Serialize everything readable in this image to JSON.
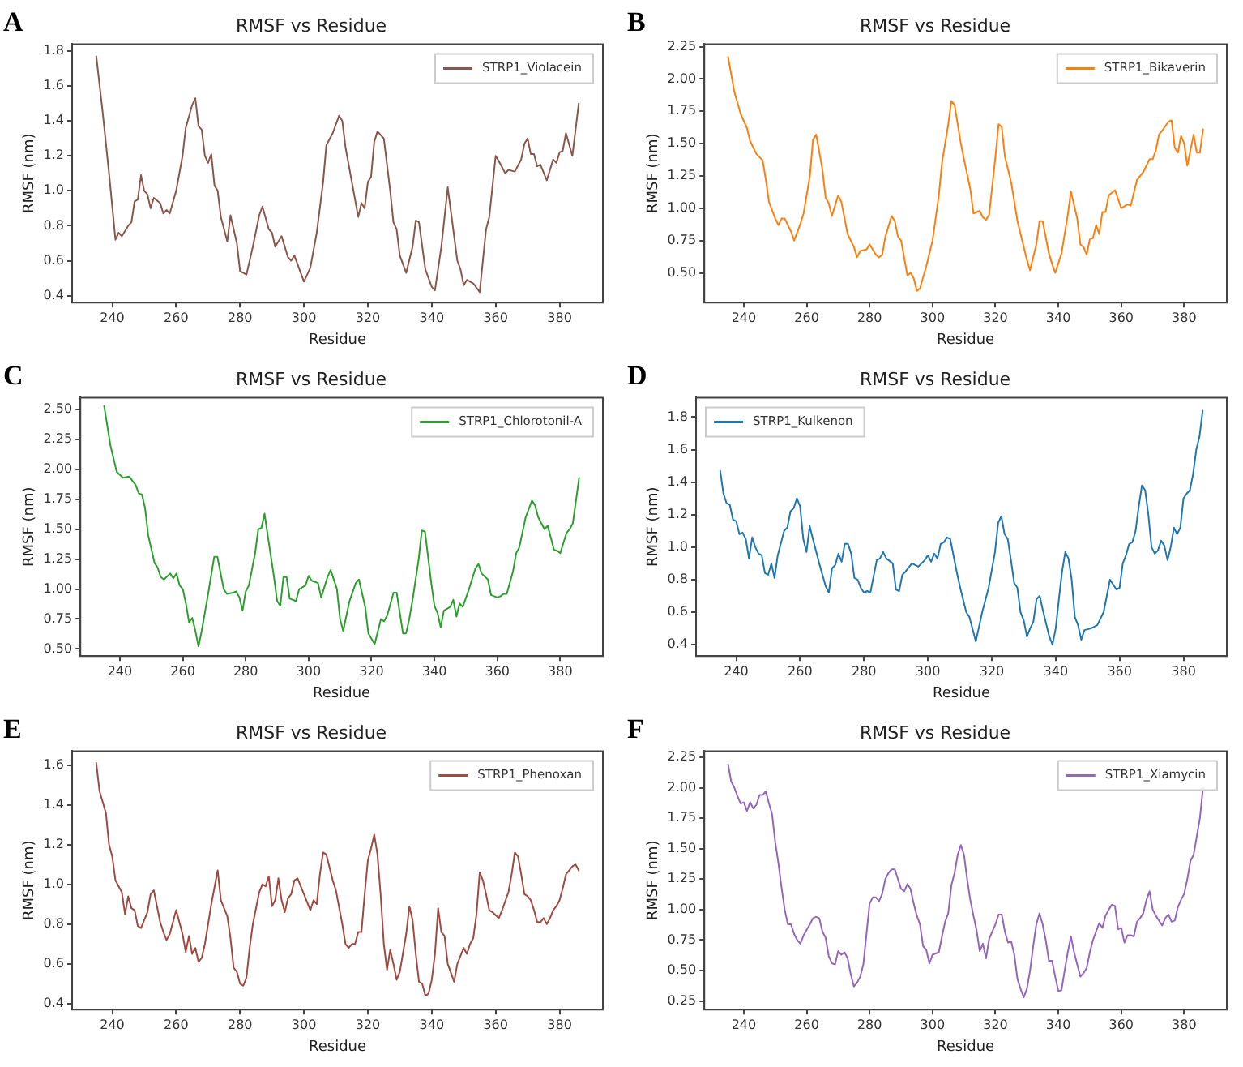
{
  "chart_data": [
    {
      "type": "line",
      "title": "RMSF vs Residue",
      "xlabel": "Residue",
      "ylabel": "RMSF (nm)",
      "annotations": [
        "A"
      ],
      "legend": "top right",
      "grid": false,
      "marker": "none",
      "line_style": "solid",
      "xlim": [
        227.45,
        393.55
      ],
      "xticks": [
        240,
        260,
        280,
        300,
        320,
        340,
        360,
        380
      ],
      "ylim": [
        0.36,
        1.84
      ],
      "yticks": [
        0.4,
        0.6,
        0.8,
        {
          "value": 1,
          "label": "1.0"
        },
        1.2,
        1.4,
        1.6,
        1.8
      ],
      "x": [
        235,
        237,
        239,
        241,
        242,
        243,
        245,
        246,
        247,
        248,
        249,
        250,
        251,
        252,
        253,
        255,
        256,
        257,
        258,
        260,
        262,
        263,
        265,
        266,
        267,
        268,
        269,
        270,
        271,
        272,
        273,
        274,
        276,
        277,
        279,
        280,
        282,
        284,
        286,
        287,
        289,
        290,
        291,
        293,
        295,
        296,
        297,
        300,
        302,
        304,
        306,
        307,
        309,
        311,
        312,
        313,
        315,
        317,
        318,
        319,
        320,
        321,
        322,
        323,
        325,
        327,
        328,
        329,
        330,
        332,
        334,
        335,
        336,
        338,
        340,
        341,
        343,
        345,
        346,
        348,
        349,
        350,
        351,
        353,
        355,
        356,
        357,
        358,
        360,
        361,
        363,
        364,
        366,
        368,
        369,
        370,
        371,
        372,
        373,
        374,
        376,
        378,
        379,
        380,
        381,
        382,
        384,
        386
      ],
      "series": [
        {
          "name": "STRP1_Violacein",
          "color": "#8c564b",
          "values": [
            1.77,
            1.45,
            1.1,
            0.72,
            0.76,
            0.74,
            0.8,
            0.82,
            0.94,
            0.95,
            1.09,
            1.0,
            0.98,
            0.9,
            0.96,
            0.93,
            0.87,
            0.89,
            0.87,
            1.0,
            1.2,
            1.36,
            1.49,
            1.53,
            1.37,
            1.35,
            1.2,
            1.16,
            1.21,
            1.03,
            1.0,
            0.85,
            0.71,
            0.86,
            0.7,
            0.54,
            0.52,
            0.68,
            0.86,
            0.91,
            0.78,
            0.76,
            0.68,
            0.74,
            0.62,
            0.6,
            0.63,
            0.48,
            0.56,
            0.76,
            1.05,
            1.26,
            1.33,
            1.43,
            1.4,
            1.25,
            1.05,
            0.85,
            0.93,
            0.9,
            1.05,
            1.08,
            1.28,
            1.34,
            1.3,
            1.0,
            0.82,
            0.78,
            0.63,
            0.53,
            0.68,
            0.83,
            0.82,
            0.55,
            0.45,
            0.43,
            0.68,
            1.02,
            0.88,
            0.6,
            0.55,
            0.46,
            0.49,
            0.47,
            0.42,
            0.6,
            0.78,
            0.85,
            1.2,
            1.17,
            1.1,
            1.12,
            1.11,
            1.18,
            1.27,
            1.3,
            1.21,
            1.21,
            1.14,
            1.15,
            1.06,
            1.18,
            1.16,
            1.22,
            1.23,
            1.33,
            1.2,
            1.5
          ]
        }
      ]
    },
    {
      "type": "line",
      "title": "RMSF vs Residue",
      "xlabel": "Residue",
      "ylabel": "RMSF (nm)",
      "annotations": [
        "B"
      ],
      "legend": "top right",
      "grid": false,
      "marker": "none",
      "line_style": "solid",
      "xlim": [
        227.45,
        393.55
      ],
      "xticks": [
        240,
        260,
        280,
        300,
        320,
        340,
        360,
        380
      ],
      "ylim": [
        0.27,
        2.27
      ],
      "yticks": [
        {
          "value": 0.5,
          "label": "0.50"
        },
        0.75,
        {
          "value": 1,
          "label": "1.00"
        },
        1.25,
        {
          "value": 1.5,
          "label": "1.50"
        },
        1.75,
        {
          "value": 2,
          "label": "2.00"
        },
        2.25
      ],
      "x": [
        235,
        237,
        239,
        241,
        242,
        244,
        246,
        247,
        248,
        250,
        251,
        252,
        253,
        255,
        256,
        258,
        259,
        261,
        262,
        263,
        265,
        266,
        267,
        268,
        270,
        271,
        273,
        275,
        276,
        277,
        279,
        280,
        282,
        283,
        284,
        285,
        287,
        288,
        289,
        290,
        292,
        293,
        294,
        295,
        296,
        298,
        300,
        302,
        303,
        305,
        306,
        307,
        309,
        310,
        312,
        313,
        315,
        316,
        317,
        318,
        320,
        321,
        322,
        323,
        325,
        327,
        328,
        330,
        331,
        333,
        334,
        335,
        337,
        338,
        339,
        341,
        343,
        344,
        346,
        347,
        348,
        349,
        350,
        351,
        352,
        353,
        354,
        355,
        356,
        358,
        360,
        362,
        363,
        365,
        367,
        369,
        370,
        371,
        372,
        373,
        375,
        376,
        377,
        378,
        379,
        380,
        381,
        383,
        384,
        385,
        386
      ],
      "series": [
        {
          "name": "STRP1_Bikaverin",
          "color": "#ff7f0e",
          "values": [
            2.17,
            1.9,
            1.73,
            1.62,
            1.52,
            1.42,
            1.37,
            1.22,
            1.05,
            0.92,
            0.87,
            0.92,
            0.92,
            0.82,
            0.75,
            0.88,
            0.96,
            1.25,
            1.53,
            1.57,
            1.3,
            1.08,
            1.04,
            0.94,
            1.1,
            1.05,
            0.8,
            0.7,
            0.62,
            0.67,
            0.68,
            0.72,
            0.64,
            0.62,
            0.64,
            0.78,
            0.94,
            0.9,
            0.78,
            0.75,
            0.48,
            0.5,
            0.46,
            0.36,
            0.38,
            0.55,
            0.75,
            1.1,
            1.35,
            1.65,
            1.83,
            1.8,
            1.5,
            1.38,
            1.15,
            0.96,
            0.98,
            0.93,
            0.91,
            0.95,
            1.4,
            1.65,
            1.63,
            1.4,
            1.2,
            0.9,
            0.8,
            0.6,
            0.52,
            0.72,
            0.9,
            0.9,
            0.65,
            0.57,
            0.5,
            0.65,
            0.95,
            1.13,
            0.92,
            0.72,
            0.7,
            0.64,
            0.76,
            0.77,
            0.87,
            0.8,
            0.97,
            0.97,
            1.1,
            1.14,
            1.0,
            1.03,
            1.02,
            1.22,
            1.28,
            1.38,
            1.38,
            1.45,
            1.57,
            1.6,
            1.67,
            1.68,
            1.47,
            1.43,
            1.56,
            1.5,
            1.33,
            1.57,
            1.43,
            1.43,
            1.61
          ]
        }
      ]
    },
    {
      "type": "line",
      "title": "RMSF vs Residue",
      "xlabel": "Residue",
      "ylabel": "RMSF (nm)",
      "annotations": [
        "C"
      ],
      "legend": "top right",
      "grid": false,
      "marker": "none",
      "line_style": "solid",
      "xlim": [
        227.45,
        393.55
      ],
      "xticks": [
        240,
        260,
        280,
        300,
        320,
        340,
        360,
        380
      ],
      "ylim": [
        0.44,
        2.6
      ],
      "yticks": [
        {
          "value": 0.5,
          "label": "0.50"
        },
        0.75,
        {
          "value": 1,
          "label": "1.00"
        },
        1.25,
        {
          "value": 1.5,
          "label": "1.50"
        },
        1.75,
        {
          "value": 2,
          "label": "2.00"
        },
        2.25,
        {
          "value": 2.5,
          "label": "2.50"
        }
      ],
      "x": [
        235,
        237,
        239,
        241,
        243,
        245,
        246,
        247,
        248,
        249,
        251,
        252,
        253,
        254,
        256,
        257,
        258,
        259,
        260,
        261,
        262,
        263,
        264,
        265,
        266,
        268,
        270,
        271,
        273,
        274,
        276,
        277,
        278,
        279,
        280,
        281,
        283,
        284,
        285,
        286,
        287,
        289,
        290,
        291,
        292,
        293,
        294,
        296,
        297,
        299,
        300,
        301,
        303,
        304,
        306,
        307,
        309,
        310,
        311,
        313,
        315,
        316,
        318,
        319,
        321,
        323,
        324,
        325,
        327,
        328,
        329,
        330,
        331,
        332,
        333,
        335,
        336,
        337,
        339,
        340,
        341,
        342,
        343,
        345,
        346,
        347,
        348,
        349,
        351,
        353,
        354,
        355,
        357,
        358,
        360,
        361,
        362,
        363,
        365,
        366,
        367,
        369,
        371,
        372,
        373,
        375,
        376,
        378,
        379,
        380,
        382,
        383,
        384,
        386
      ],
      "series": [
        {
          "name": "STRP1_Chlorotonil-A",
          "color": "#2ca02c",
          "values": [
            2.53,
            2.2,
            1.98,
            1.93,
            1.94,
            1.87,
            1.8,
            1.79,
            1.68,
            1.45,
            1.22,
            1.18,
            1.1,
            1.08,
            1.13,
            1.09,
            1.13,
            1.03,
            1.0,
            0.88,
            0.72,
            0.76,
            0.65,
            0.52,
            0.65,
            0.95,
            1.27,
            1.27,
            1.0,
            0.96,
            0.97,
            0.98,
            0.93,
            0.82,
            0.98,
            1.03,
            1.3,
            1.5,
            1.51,
            1.63,
            1.45,
            1.1,
            0.9,
            0.86,
            1.1,
            1.1,
            0.92,
            0.9,
            1.0,
            1.03,
            1.11,
            1.07,
            1.05,
            0.93,
            1.1,
            1.16,
            1.0,
            0.75,
            0.65,
            0.9,
            1.05,
            1.08,
            0.85,
            0.63,
            0.54,
            0.75,
            0.73,
            0.78,
            0.97,
            0.97,
            0.8,
            0.63,
            0.63,
            0.75,
            0.9,
            1.25,
            1.49,
            1.48,
            1.05,
            0.86,
            0.8,
            0.68,
            0.82,
            0.85,
            0.91,
            0.77,
            0.88,
            0.85,
            1.0,
            1.17,
            1.21,
            1.13,
            1.08,
            0.95,
            0.93,
            0.94,
            0.96,
            0.96,
            1.15,
            1.3,
            1.35,
            1.6,
            1.74,
            1.7,
            1.6,
            1.5,
            1.53,
            1.33,
            1.32,
            1.3,
            1.47,
            1.5,
            1.55,
            1.93
          ]
        }
      ]
    },
    {
      "type": "line",
      "title": "RMSF vs Residue",
      "xlabel": "Residue",
      "ylabel": "RMSF (nm)",
      "annotations": [
        "D"
      ],
      "legend": "top left",
      "grid": false,
      "marker": "none",
      "line_style": "solid",
      "xlim": [
        227.45,
        393.55
      ],
      "xticks": [
        240,
        260,
        280,
        300,
        320,
        340,
        360,
        380
      ],
      "ylim": [
        0.33,
        1.92
      ],
      "yticks": [
        0.4,
        0.6,
        0.8,
        {
          "value": 1,
          "label": "1.0"
        },
        1.2,
        1.4,
        1.6,
        1.8
      ],
      "x": [
        235,
        236,
        237,
        238,
        239,
        240,
        241,
        242,
        243,
        244,
        245,
        246,
        247,
        248,
        249,
        250,
        251,
        252,
        253,
        255,
        256,
        257,
        258,
        259,
        260,
        261,
        262,
        263,
        264,
        266,
        268,
        269,
        270,
        271,
        272,
        273,
        274,
        275,
        276,
        277,
        278,
        279,
        280,
        281,
        282,
        283,
        284,
        285,
        286,
        287,
        289,
        290,
        291,
        292,
        293,
        295,
        297,
        299,
        300,
        301,
        302,
        303,
        304,
        305,
        306,
        307,
        309,
        310,
        312,
        313,
        315,
        317,
        319,
        321,
        322,
        323,
        324,
        325,
        326,
        327,
        328,
        329,
        330,
        331,
        332,
        333,
        334,
        335,
        336,
        338,
        339,
        340,
        341,
        342,
        343,
        344,
        345,
        346,
        347,
        348,
        349,
        351,
        353,
        355,
        356,
        357,
        358,
        359,
        360,
        361,
        362,
        363,
        364,
        365,
        366,
        367,
        368,
        369,
        370,
        371,
        372,
        373,
        374,
        375,
        376,
        377,
        378,
        379,
        380,
        381,
        382,
        383,
        384,
        385,
        386
      ],
      "series": [
        {
          "name": "STRP1_Kulkenon",
          "color": "#1f77b4",
          "values": [
            1.47,
            1.33,
            1.27,
            1.26,
            1.17,
            1.16,
            1.08,
            1.09,
            1.05,
            0.93,
            1.06,
            1.0,
            0.96,
            0.95,
            0.84,
            0.83,
            0.9,
            0.81,
            0.95,
            1.1,
            1.12,
            1.22,
            1.24,
            1.3,
            1.25,
            1.05,
            0.97,
            1.13,
            1.05,
            0.9,
            0.76,
            0.72,
            0.87,
            0.89,
            0.96,
            0.91,
            1.02,
            1.02,
            0.96,
            0.81,
            0.8,
            0.75,
            0.72,
            0.73,
            0.72,
            0.82,
            0.92,
            0.93,
            0.97,
            0.93,
            0.9,
            0.74,
            0.73,
            0.83,
            0.85,
            0.9,
            0.88,
            0.92,
            0.95,
            0.91,
            0.96,
            0.93,
            1.02,
            1.03,
            1.06,
            1.05,
            0.85,
            0.76,
            0.6,
            0.57,
            0.42,
            0.6,
            0.75,
            0.97,
            1.15,
            1.19,
            1.08,
            1.05,
            0.92,
            0.78,
            0.75,
            0.6,
            0.55,
            0.45,
            0.5,
            0.54,
            0.68,
            0.7,
            0.61,
            0.45,
            0.4,
            0.5,
            0.68,
            0.85,
            0.97,
            0.93,
            0.8,
            0.57,
            0.52,
            0.43,
            0.49,
            0.5,
            0.52,
            0.6,
            0.7,
            0.8,
            0.77,
            0.74,
            0.75,
            0.9,
            0.95,
            1.02,
            1.03,
            1.1,
            1.25,
            1.38,
            1.35,
            1.2,
            1.0,
            0.96,
            0.98,
            1.04,
            1.01,
            0.92,
            1.0,
            1.12,
            1.08,
            1.12,
            1.3,
            1.33,
            1.35,
            1.45,
            1.6,
            1.68,
            1.84
          ]
        }
      ]
    },
    {
      "type": "line",
      "title": "RMSF vs Residue",
      "xlabel": "Residue",
      "ylabel": "RMSF (nm)",
      "annotations": [
        "E"
      ],
      "legend": "top right",
      "grid": false,
      "marker": "none",
      "line_style": "solid",
      "xlim": [
        227.45,
        393.55
      ],
      "xticks": [
        240,
        260,
        280,
        300,
        320,
        340,
        360,
        380
      ],
      "ylim": [
        0.37,
        1.67
      ],
      "yticks": [
        0.4,
        0.6,
        0.8,
        {
          "value": 1,
          "label": "1.0"
        },
        1.2,
        1.4,
        1.6
      ],
      "x": [
        235,
        236,
        238,
        239,
        240,
        241,
        243,
        244,
        245,
        246,
        247,
        248,
        249,
        251,
        252,
        253,
        255,
        256,
        257,
        258,
        260,
        262,
        263,
        264,
        265,
        266,
        267,
        268,
        269,
        271,
        273,
        274,
        276,
        277,
        278,
        279,
        280,
        281,
        282,
        283,
        284,
        286,
        287,
        288,
        289,
        290,
        291,
        292,
        293,
        294,
        295,
        296,
        297,
        298,
        300,
        302,
        303,
        304,
        305,
        306,
        307,
        309,
        310,
        312,
        313,
        314,
        315,
        316,
        317,
        318,
        319,
        320,
        321,
        322,
        323,
        324,
        325,
        326,
        327,
        328,
        329,
        330,
        332,
        333,
        334,
        335,
        336,
        337,
        338,
        339,
        340,
        341,
        342,
        343,
        344,
        345,
        347,
        348,
        350,
        351,
        352,
        353,
        354,
        355,
        356,
        357,
        358,
        359,
        361,
        362,
        364,
        365,
        366,
        367,
        368,
        369,
        370,
        371,
        372,
        373,
        374,
        375,
        376,
        377,
        378,
        379,
        380,
        381,
        382,
        384,
        385,
        386
      ],
      "series": [
        {
          "name": "STRP1_Phenoxan",
          "color": "#a04a42",
          "values": [
            1.61,
            1.47,
            1.36,
            1.2,
            1.14,
            1.02,
            0.96,
            0.85,
            0.94,
            0.88,
            0.87,
            0.79,
            0.78,
            0.86,
            0.95,
            0.97,
            0.81,
            0.76,
            0.72,
            0.75,
            0.87,
            0.75,
            0.66,
            0.74,
            0.65,
            0.68,
            0.61,
            0.63,
            0.7,
            0.9,
            1.07,
            0.92,
            0.84,
            0.73,
            0.58,
            0.56,
            0.5,
            0.49,
            0.53,
            0.68,
            0.8,
            0.96,
            1.0,
            0.99,
            1.04,
            0.89,
            0.92,
            1.03,
            0.92,
            0.86,
            0.93,
            0.95,
            1.02,
            1.03,
            0.95,
            0.87,
            0.92,
            0.9,
            1.05,
            1.16,
            1.15,
            1.02,
            0.97,
            0.8,
            0.7,
            0.68,
            0.7,
            0.7,
            0.76,
            0.76,
            0.95,
            1.12,
            1.18,
            1.25,
            1.15,
            0.95,
            0.7,
            0.57,
            0.67,
            0.6,
            0.52,
            0.56,
            0.75,
            0.89,
            0.82,
            0.65,
            0.51,
            0.5,
            0.44,
            0.45,
            0.52,
            0.65,
            0.88,
            0.76,
            0.74,
            0.6,
            0.51,
            0.6,
            0.68,
            0.65,
            0.7,
            0.73,
            0.85,
            1.06,
            1.02,
            0.95,
            0.87,
            0.86,
            0.83,
            0.87,
            0.96,
            1.05,
            1.16,
            1.14,
            1.05,
            0.95,
            0.94,
            0.92,
            0.87,
            0.81,
            0.81,
            0.83,
            0.8,
            0.83,
            0.87,
            0.89,
            0.92,
            0.98,
            1.05,
            1.09,
            1.1,
            1.07
          ]
        }
      ]
    },
    {
      "type": "line",
      "title": "RMSF vs Residue",
      "xlabel": "Residue",
      "ylabel": "RMSF (nm)",
      "annotations": [
        "F"
      ],
      "legend": "top right",
      "grid": false,
      "marker": "none",
      "line_style": "solid",
      "xlim": [
        227.45,
        393.55
      ],
      "xticks": [
        240,
        260,
        280,
        300,
        320,
        340,
        360,
        380
      ],
      "ylim": [
        0.18,
        2.3
      ],
      "yticks": [
        0.25,
        {
          "value": 0.5,
          "label": "0.50"
        },
        0.75,
        {
          "value": 1,
          "label": "1.00"
        },
        1.25,
        {
          "value": 1.5,
          "label": "1.50"
        },
        1.75,
        {
          "value": 2,
          "label": "2.00"
        },
        2.25
      ],
      "x": [
        235,
        236,
        237,
        238,
        239,
        240,
        241,
        242,
        243,
        244,
        245,
        246,
        247,
        248,
        249,
        250,
        251,
        252,
        253,
        254,
        255,
        256,
        257,
        258,
        259,
        261,
        262,
        263,
        264,
        265,
        266,
        267,
        268,
        269,
        270,
        271,
        272,
        273,
        274,
        275,
        276,
        277,
        278,
        279,
        280,
        281,
        282,
        283,
        284,
        285,
        286,
        287,
        288,
        289,
        290,
        291,
        292,
        293,
        294,
        295,
        296,
        297,
        298,
        299,
        300,
        301,
        302,
        303,
        304,
        305,
        306,
        307,
        308,
        309,
        310,
        311,
        312,
        313,
        314,
        315,
        316,
        317,
        318,
        320,
        321,
        322,
        323,
        324,
        325,
        326,
        327,
        328,
        329,
        330,
        331,
        332,
        333,
        334,
        335,
        336,
        337,
        338,
        339,
        340,
        341,
        342,
        343,
        344,
        345,
        346,
        347,
        348,
        349,
        350,
        351,
        352,
        353,
        354,
        355,
        356,
        357,
        358,
        359,
        360,
        361,
        362,
        363,
        364,
        365,
        366,
        367,
        368,
        369,
        370,
        371,
        372,
        373,
        374,
        375,
        376,
        377,
        378,
        379,
        380,
        381,
        382,
        383,
        384,
        385,
        386
      ],
      "series": [
        {
          "name": "STRP1_Xiamycin",
          "color": "#9467bd",
          "values": [
            2.19,
            2.05,
            2.0,
            1.93,
            1.87,
            1.88,
            1.81,
            1.88,
            1.83,
            1.86,
            1.94,
            1.94,
            1.97,
            1.87,
            1.78,
            1.55,
            1.38,
            1.18,
            1.0,
            0.88,
            0.88,
            0.8,
            0.75,
            0.72,
            0.79,
            0.88,
            0.93,
            0.94,
            0.93,
            0.82,
            0.77,
            0.62,
            0.56,
            0.55,
            0.66,
            0.63,
            0.65,
            0.6,
            0.47,
            0.37,
            0.4,
            0.45,
            0.55,
            0.8,
            1.05,
            1.1,
            1.1,
            1.07,
            1.13,
            1.25,
            1.3,
            1.33,
            1.33,
            1.25,
            1.17,
            1.15,
            1.21,
            1.17,
            1.05,
            0.95,
            0.88,
            0.7,
            0.67,
            0.56,
            0.63,
            0.64,
            0.65,
            0.78,
            0.9,
            0.97,
            1.2,
            1.3,
            1.45,
            1.53,
            1.45,
            1.25,
            1.08,
            0.95,
            0.83,
            0.66,
            0.72,
            0.6,
            0.76,
            0.88,
            0.96,
            0.96,
            0.82,
            0.73,
            0.74,
            0.63,
            0.43,
            0.35,
            0.28,
            0.35,
            0.5,
            0.7,
            0.88,
            0.97,
            0.88,
            0.75,
            0.58,
            0.58,
            0.45,
            0.33,
            0.34,
            0.5,
            0.65,
            0.78,
            0.65,
            0.55,
            0.45,
            0.48,
            0.52,
            0.65,
            0.75,
            0.82,
            0.89,
            0.85,
            0.95,
            1.0,
            1.04,
            1.03,
            0.84,
            0.85,
            0.73,
            0.79,
            0.79,
            0.78,
            0.9,
            0.93,
            0.97,
            1.08,
            1.15,
            1.0,
            0.95,
            0.91,
            0.87,
            0.93,
            0.96,
            0.9,
            0.91,
            1.02,
            1.08,
            1.13,
            1.25,
            1.4,
            1.45,
            1.6,
            1.75,
            2.0
          ]
        }
      ]
    }
  ]
}
